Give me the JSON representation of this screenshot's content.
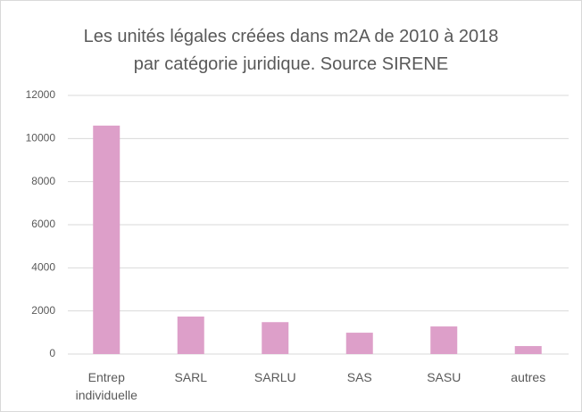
{
  "chart_data": {
    "type": "bar",
    "title": "Les unités légales créées dans m2A de 2010 à 2018 par catégorie juridique. Source SIRENE",
    "categories": [
      "Entrep individuelle",
      "SARL",
      "SARLU",
      "SAS",
      "SASU",
      "autres"
    ],
    "values": [
      10600,
      1740,
      1480,
      990,
      1280,
      370
    ],
    "color": "#dd9fc9",
    "ylim": [
      0,
      12000
    ],
    "yticks": [
      0,
      2000,
      4000,
      6000,
      8000,
      10000,
      12000
    ],
    "grid": true
  }
}
